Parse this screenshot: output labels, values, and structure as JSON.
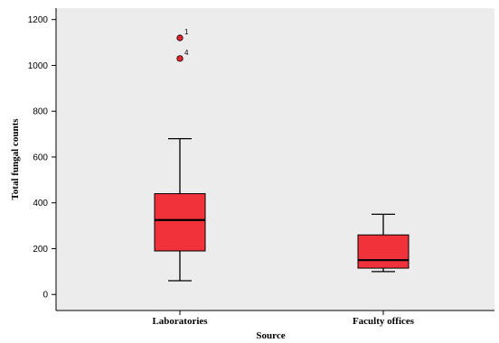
{
  "chart_data": {
    "type": "box",
    "xlabel": "Source",
    "ylabel": "Total fungal counts",
    "ylim": [
      -70,
      1250
    ],
    "yticks": [
      0,
      200,
      400,
      600,
      800,
      1000,
      1200
    ],
    "categories": [
      "Laboratories",
      "Faculty offices"
    ],
    "boxes": [
      {
        "category": "Laboratories",
        "min": 60,
        "q1": 190,
        "median": 325,
        "q3": 440,
        "max": 680,
        "outliers": [
          {
            "label": "1",
            "value": 1120
          },
          {
            "label": "4",
            "value": 1030
          }
        ]
      },
      {
        "category": "Faculty offices",
        "min": 100,
        "q1": 115,
        "median": 150,
        "q3": 260,
        "max": 350,
        "outliers": []
      }
    ],
    "colors": {
      "plot_bg": "#ececec",
      "box_fill": "#f0323b",
      "outlier_fill": "#e8252e",
      "stroke": "#000000"
    }
  }
}
